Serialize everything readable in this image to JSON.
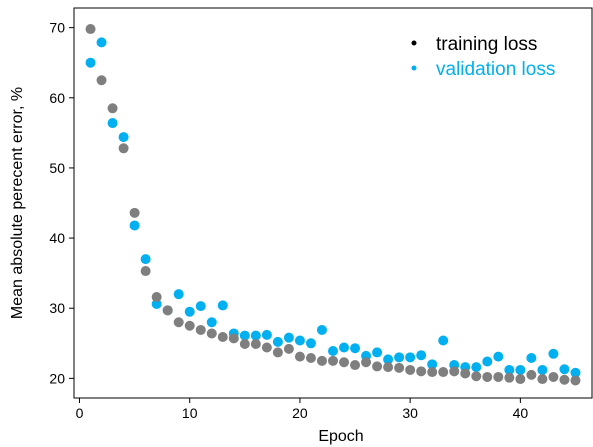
{
  "chart_data": {
    "type": "scatter",
    "xlabel": "Epoch",
    "ylabel": "Mean absolute perecent error, %",
    "xlim": [
      -0.5,
      46.5
    ],
    "ylim": [
      17.2,
      72.8
    ],
    "xticks": [
      0,
      10,
      20,
      30,
      40
    ],
    "yticks": [
      20,
      30,
      40,
      50,
      60,
      70
    ],
    "legend_position": "top-right",
    "series": [
      {
        "name": "training loss",
        "color": "#7f7f7f",
        "x": [
          1,
          2,
          3,
          4,
          5,
          6,
          7,
          8,
          9,
          10,
          11,
          12,
          13,
          14,
          15,
          16,
          17,
          18,
          19,
          20,
          21,
          22,
          23,
          24,
          25,
          26,
          27,
          28,
          29,
          30,
          31,
          32,
          33,
          34,
          35,
          36,
          37,
          38,
          39,
          40,
          41,
          42,
          43,
          44,
          45
        ],
        "y": [
          69.8,
          62.5,
          58.5,
          52.8,
          43.6,
          35.3,
          31.6,
          29.7,
          28.0,
          27.5,
          26.9,
          26.4,
          25.9,
          25.7,
          24.9,
          24.9,
          24.4,
          23.7,
          24.2,
          23.1,
          22.9,
          22.5,
          22.5,
          22.3,
          21.9,
          22.3,
          21.7,
          21.6,
          21.5,
          21.2,
          21.0,
          20.9,
          20.9,
          21.0,
          20.7,
          20.3,
          20.2,
          20.2,
          20.1,
          19.9,
          20.5,
          19.9,
          20.2,
          19.8,
          19.7
        ]
      },
      {
        "name": "validation loss",
        "color": "#00b0f0",
        "x": [
          1,
          2,
          3,
          4,
          5,
          6,
          7,
          8,
          9,
          10,
          11,
          12,
          13,
          14,
          15,
          16,
          17,
          18,
          19,
          20,
          21,
          22,
          23,
          24,
          25,
          26,
          27,
          28,
          29,
          30,
          31,
          32,
          33,
          34,
          35,
          36,
          37,
          38,
          39,
          40,
          41,
          42,
          43,
          44,
          45
        ],
        "y": [
          65.0,
          67.9,
          56.4,
          54.4,
          41.8,
          37.0,
          30.6,
          29.7,
          32.0,
          29.5,
          30.3,
          28.0,
          30.4,
          26.4,
          26.1,
          26.1,
          26.2,
          25.2,
          25.8,
          25.4,
          25.0,
          26.9,
          23.9,
          24.4,
          24.3,
          23.2,
          23.7,
          22.7,
          23.0,
          23.0,
          23.3,
          22.0,
          25.4,
          21.9,
          21.6,
          21.6,
          22.4,
          23.1,
          21.2,
          21.2,
          22.9,
          21.2,
          23.5,
          21.3,
          20.8
        ]
      }
    ]
  }
}
